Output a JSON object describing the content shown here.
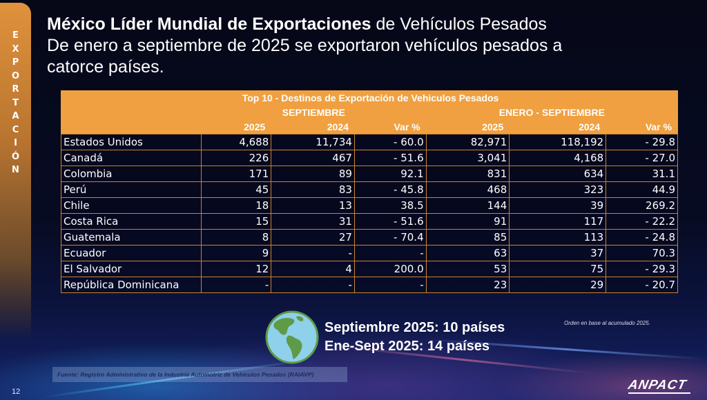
{
  "side_tab": {
    "letters": [
      "E",
      "X",
      "P",
      "O",
      "R",
      "T",
      "A",
      "C",
      "I",
      "Ó",
      "N"
    ]
  },
  "title": {
    "bold": "México Líder Mundial de Exportaciones",
    "regular": " de Vehículos Pesados",
    "line2": "De enero a septiembre de 2025 se exportaron vehículos pesados a",
    "line3": "catorce países."
  },
  "table": {
    "caption": "Top 10 - Destinos de Exportación de Vehiculos Pesados",
    "group_headers": [
      "SEPTIEMBRE",
      "ENERO - SEPTIEMBRE"
    ],
    "columns": [
      "2025",
      "2024",
      "Var %",
      "2025",
      "2024",
      "Var %"
    ],
    "rows": [
      {
        "country": "Estados Unidos",
        "sep_2025": "4,688",
        "sep_2024": "11,734",
        "sep_var": "- 60.0",
        "ytd_2025": "82,971",
        "ytd_2024": "118,192",
        "ytd_var": "- 29.8"
      },
      {
        "country": "Canadá",
        "sep_2025": "226",
        "sep_2024": "467",
        "sep_var": "- 51.6",
        "ytd_2025": "3,041",
        "ytd_2024": "4,168",
        "ytd_var": "- 27.0"
      },
      {
        "country": "Colombia",
        "sep_2025": "171",
        "sep_2024": "89",
        "sep_var": "92.1",
        "ytd_2025": "831",
        "ytd_2024": "634",
        "ytd_var": "31.1"
      },
      {
        "country": "Perú",
        "sep_2025": "45",
        "sep_2024": "83",
        "sep_var": "- 45.8",
        "ytd_2025": "468",
        "ytd_2024": "323",
        "ytd_var": "44.9"
      },
      {
        "country": "Chile",
        "sep_2025": "18",
        "sep_2024": "13",
        "sep_var": "38.5",
        "ytd_2025": "144",
        "ytd_2024": "39",
        "ytd_var": "269.2"
      },
      {
        "country": "Costa Rica",
        "sep_2025": "15",
        "sep_2024": "31",
        "sep_var": "- 51.6",
        "ytd_2025": "91",
        "ytd_2024": "117",
        "ytd_var": "- 22.2"
      },
      {
        "country": "Guatemala",
        "sep_2025": "8",
        "sep_2024": "27",
        "sep_var": "- 70.4",
        "ytd_2025": "85",
        "ytd_2024": "113",
        "ytd_var": "- 24.8"
      },
      {
        "country": "Ecuador",
        "sep_2025": "9",
        "sep_2024": "-",
        "sep_var": "-",
        "ytd_2025": "63",
        "ytd_2024": "37",
        "ytd_var": "70.3"
      },
      {
        "country": "El Salvador",
        "sep_2025": "12",
        "sep_2024": "4",
        "sep_var": "200.0",
        "ytd_2025": "53",
        "ytd_2024": "75",
        "ytd_var": "- 29.3"
      },
      {
        "country": "República Dominicana",
        "sep_2025": "-",
        "sep_2024": "-",
        "sep_var": "-",
        "ytd_2025": "23",
        "ytd_2024": "29",
        "ytd_var": "- 20.7"
      }
    ]
  },
  "summary": {
    "line1": "Septiembre 2025: 10 países",
    "line2": "Ene-Sept 2025: 14 países",
    "icon": "globe-icon"
  },
  "note": "Orden en base al acumulado 2025.",
  "source": "Fuente: Registro Administrativo de la Industria Automotriz de Vehículos Pesados (RAIAVP)",
  "page_number": "12",
  "logo": "ANPACT",
  "colors": {
    "accent_orange": "#f0a040",
    "background": "#060818",
    "globe_ocean": "#8fd0ea",
    "globe_land": "#5f9a48"
  }
}
